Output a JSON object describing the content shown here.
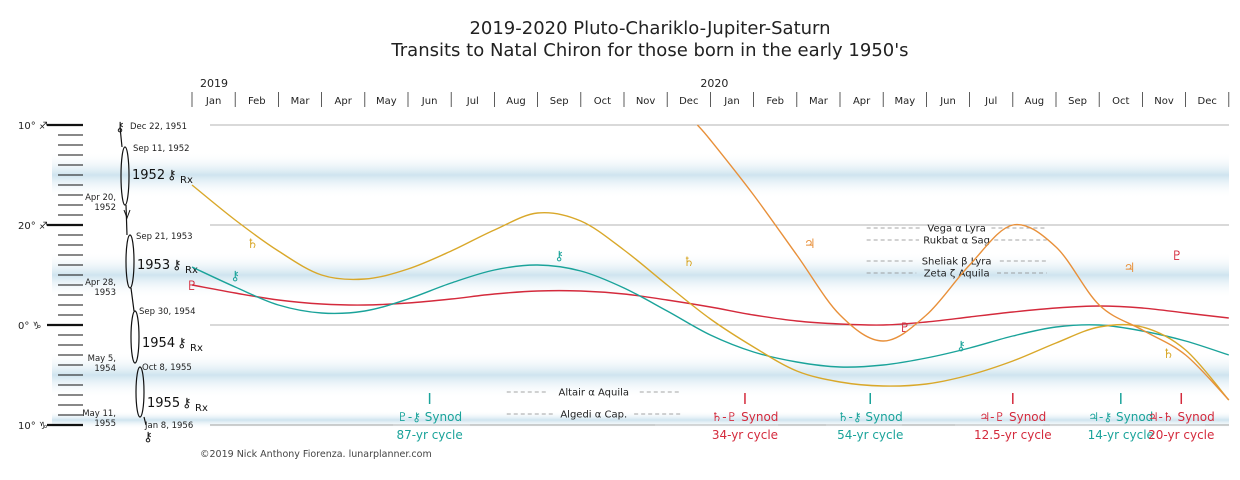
{
  "title_line1": "2019-2020 Pluto-Chariklo-Jupiter-Saturn",
  "title_line2": "Transits to Natal Chiron for those born in the early 1950's",
  "credit": "©2019 Nick Anthony Fiorenza. lunarplanner.com",
  "colors": {
    "pluto": "#d42a3c",
    "chariklo": "#1aa39a",
    "saturn": "#d9a82a",
    "jupiter": "#e8903a",
    "band": "#e7f0c9",
    "band_alt": "#cfe4ef"
  },
  "chart_data": {
    "type": "line",
    "title": "2019-2020 Pluto-Chariklo-Jupiter-Saturn Transits to Natal Chiron for those born in the early 1950's",
    "x_years": [
      "2019",
      "2020"
    ],
    "x_months": [
      "Jan",
      "Feb",
      "Mar",
      "Apr",
      "May",
      "Jun",
      "Jul",
      "Aug",
      "Sep",
      "Oct",
      "Nov",
      "Dec",
      "Jan",
      "Feb",
      "Mar",
      "Apr",
      "May",
      "Jun",
      "Jul",
      "Aug",
      "Sep",
      "Oct",
      "Nov",
      "Dec"
    ],
    "y_axis_labels": [
      "10° ♐",
      "20° ♐",
      "0° ♑",
      "10° ♑"
    ],
    "ylim": [
      0,
      30
    ],
    "y_unit": "degrees from 10° Sagittarius",
    "series": [
      {
        "name": "Pluto",
        "glyph": "♇",
        "color_key": "pluto",
        "glyph_labels": [
          [
            0,
            16
          ],
          [
            22.8,
            13
          ],
          [
            16.5,
            20.2
          ]
        ],
        "x": [
          0,
          1,
          2,
          3,
          4,
          5,
          6,
          7,
          8,
          9,
          10,
          11,
          12,
          13,
          14,
          15,
          16,
          17,
          18,
          19,
          20,
          21,
          22,
          23,
          24
        ],
        "y": [
          16.0,
          16.8,
          17.5,
          17.9,
          18.0,
          17.8,
          17.4,
          16.9,
          16.6,
          16.6,
          16.9,
          17.5,
          18.2,
          19.0,
          19.6,
          19.9,
          20.0,
          19.7,
          19.2,
          18.7,
          18.3,
          18.1,
          18.3,
          18.8,
          19.3
        ]
      },
      {
        "name": "Chariklo",
        "glyph": "⚷",
        "color_key": "chariklo",
        "glyph_labels": [
          [
            1,
            15
          ],
          [
            8.5,
            13
          ],
          [
            17.8,
            22
          ]
        ],
        "x": [
          0,
          1,
          2,
          3,
          4,
          5,
          6,
          7,
          8,
          9,
          10,
          11,
          12,
          13,
          14,
          15,
          16,
          17,
          18,
          19,
          20,
          21,
          22,
          23,
          24
        ],
        "y": [
          14.2,
          16.2,
          18.0,
          18.8,
          18.6,
          17.4,
          15.8,
          14.5,
          14.0,
          14.6,
          16.3,
          18.6,
          21.0,
          22.7,
          23.7,
          24.2,
          24.0,
          23.3,
          22.3,
          21.1,
          20.2,
          20.0,
          20.6,
          21.6,
          23.0
        ]
      },
      {
        "name": "Saturn",
        "glyph": "♄",
        "color_key": "saturn",
        "glyph_labels": [
          [
            1.4,
            11.8
          ],
          [
            11.5,
            13.6
          ],
          [
            22.6,
            22.8
          ]
        ],
        "x": [
          0,
          1,
          2,
          3,
          4,
          5,
          6,
          7,
          8,
          9,
          10,
          11,
          12,
          13,
          14,
          15,
          16,
          17,
          18,
          19,
          20,
          21,
          22,
          23,
          24
        ],
        "y": [
          6.0,
          9.5,
          12.6,
          15.0,
          15.4,
          14.4,
          12.6,
          10.5,
          8.8,
          9.6,
          12.5,
          16.0,
          19.4,
          22.2,
          24.6,
          25.7,
          26.1,
          25.9,
          25.0,
          23.6,
          21.8,
          20.2,
          20.2,
          22.5,
          27.5
        ]
      },
      {
        "name": "Jupiter",
        "glyph": "♃",
        "color_key": "jupiter",
        "glyph_labels": [
          [
            14.3,
            11.8
          ],
          [
            21.7,
            14.2
          ]
        ],
        "x": [
          11.7,
          12,
          13,
          14,
          15,
          16,
          17,
          18,
          19,
          20,
          21,
          22,
          23,
          24
        ],
        "y": [
          0.0,
          1.5,
          7.0,
          13.0,
          19.0,
          21.6,
          19.0,
          14.0,
          10.0,
          12.2,
          18.0,
          20.5,
          23.0,
          27.5
        ]
      }
    ],
    "stars": [
      {
        "label": "Vega α Lyra",
        "y": 10.3
      },
      {
        "label": "Rukbat α Sag",
        "y": 11.5
      },
      {
        "label": "Sheliak β Lyra",
        "y": 13.6
      },
      {
        "label": "Zeta ζ Aquila",
        "y": 14.8
      },
      {
        "label": "Altair α Aquila",
        "y": 26.7
      },
      {
        "label": "Algedi α Cap.",
        "y": 28.9
      }
    ],
    "synods": [
      {
        "label": "♇-⚷ Synod",
        "cycle": "87-yr cycle",
        "x": 5.5,
        "color_key": "chariklo"
      },
      {
        "label": "♄-♇ Synod",
        "cycle": "34-yr cycle",
        "x": 12.8,
        "color_key": "pluto"
      },
      {
        "label": "♄-⚷ Synod",
        "cycle": "54-yr cycle",
        "x": 15.7,
        "color_key": "chariklo"
      },
      {
        "label": "♃-♇ Synod",
        "cycle": "12.5-yr cycle",
        "x": 19.0,
        "color_key": "pluto"
      },
      {
        "label": "♃-⚷ Synod",
        "cycle": "14-yr cycle",
        "x": 21.5,
        "color_key": "chariklo"
      },
      {
        "label": "♃-♄ Synod",
        "cycle": "20-yr cycle",
        "x": 22.9,
        "color_key": "pluto"
      }
    ],
    "natal_chiron": {
      "glyph": "⚷",
      "rx_label": "Rx",
      "years": [
        {
          "year": "1952",
          "y": 5.0
        },
        {
          "year": "1953",
          "y": 14.0
        },
        {
          "year": "1954",
          "y": 21.8
        },
        {
          "year": "1955",
          "y": 27.8
        }
      ],
      "dates_right": [
        {
          "text": "Dec 22, 1951",
          "y": 0.1
        },
        {
          "text": "Sep 11, 1952",
          "y": 2.3
        },
        {
          "text": "Sep 21, 1953",
          "y": 11.1
        },
        {
          "text": "Sep 30, 1954",
          "y": 18.6
        },
        {
          "text": "Oct 8, 1955",
          "y": 24.2
        },
        {
          "text": "Jan 8, 1956",
          "y": 30.0
        }
      ],
      "dates_left": [
        {
          "text": "Apr 20,",
          "text2": "1952",
          "y": 7.4
        },
        {
          "text": "Apr 28,",
          "text2": "1953",
          "y": 15.9
        },
        {
          "text": "May 5,",
          "text2": "1954",
          "y": 23.5
        },
        {
          "text": "May 11,",
          "text2": "1955",
          "y": 29.0
        }
      ]
    }
  }
}
